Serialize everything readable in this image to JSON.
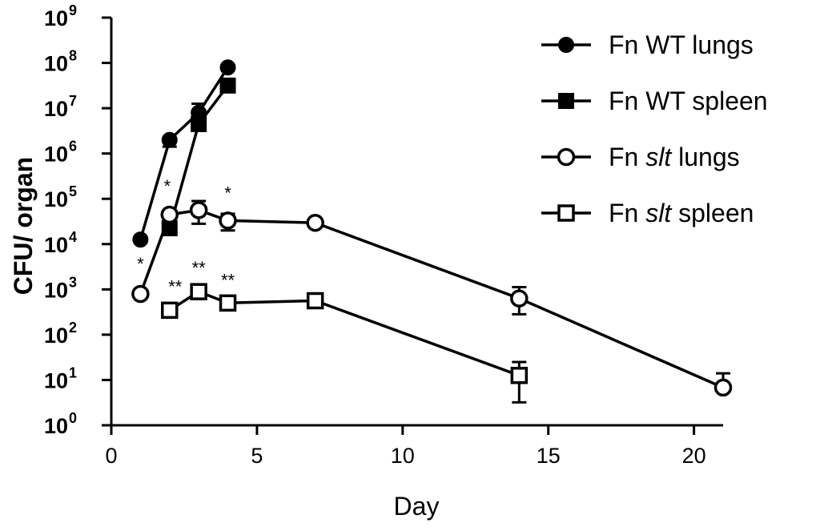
{
  "chart_data": {
    "type": "line",
    "title": "",
    "xlabel": "Day",
    "ylabel": "CFU/ organ",
    "y_scale": "log10",
    "xlim": [
      0,
      21
    ],
    "ylim": [
      1,
      1000000000
    ],
    "x_ticks": [
      "0",
      "5",
      "10",
      "15",
      "20"
    ],
    "x_tick_values": [
      0,
      5,
      10,
      15,
      20
    ],
    "y_tick_base": "10",
    "y_tick_exponents": [
      "0",
      "1",
      "2",
      "3",
      "4",
      "5",
      "6",
      "7",
      "8",
      "9"
    ],
    "legend_position": "top-right",
    "grid": false,
    "series": [
      {
        "name_parts": [
          "Fn ",
          "WT",
          " lungs"
        ],
        "name_italic": [
          false,
          false,
          false
        ],
        "marker": "filled-circle",
        "x": [
          1,
          2,
          3,
          4
        ],
        "y": [
          12589,
          1995262,
          7943282,
          79432823
        ],
        "err_low": [
          12589,
          1412538,
          5011872,
          79432823
        ],
        "err_high": [
          12589,
          2238721,
          12589254,
          79432823
        ]
      },
      {
        "name_parts": [
          "Fn ",
          "WT",
          " spleen"
        ],
        "name_italic": [
          false,
          false,
          false
        ],
        "marker": "filled-square",
        "x": [
          2,
          3,
          4
        ],
        "y": [
          22387,
          4466836,
          31622777
        ],
        "err_low": [
          15849,
          3162278,
          25118864
        ],
        "err_high": [
          31623,
          6309573,
          39810717
        ]
      },
      {
        "name_parts": [
          "Fn ",
          "slt",
          " lungs"
        ],
        "name_italic": [
          false,
          true,
          false
        ],
        "marker": "open-circle",
        "x": [
          1,
          2,
          3,
          4,
          7,
          14,
          21
        ],
        "y": [
          794,
          44668,
          56234,
          33113,
          29512,
          631,
          6.8
        ],
        "err_low": [
          794,
          44668,
          28184,
          19953,
          29512,
          282,
          6.8
        ],
        "err_high": [
          794,
          44668,
          89125,
          46774,
          29512,
          1122,
          14
        ]
      },
      {
        "name_parts": [
          "Fn ",
          "slt",
          " spleen"
        ],
        "name_italic": [
          false,
          true,
          false
        ],
        "marker": "open-square",
        "x": [
          2,
          3,
          4,
          7,
          14
        ],
        "y": [
          347,
          891,
          501,
          562,
          12.6
        ],
        "err_low": [
          347,
          891,
          501,
          562,
          3.2
        ],
        "err_high": [
          347,
          891,
          501,
          562,
          25
        ]
      }
    ],
    "annotations": [
      {
        "text": "*",
        "x": 2,
        "y": 44668
      },
      {
        "text": "*",
        "x": 4,
        "y": 33113
      },
      {
        "text": "*",
        "x": 1,
        "y": 794
      },
      {
        "text": "**",
        "x": 2,
        "y": 347
      },
      {
        "text": "**",
        "x": 3,
        "y": 891
      },
      {
        "text": "**",
        "x": 4,
        "y": 501
      }
    ]
  }
}
